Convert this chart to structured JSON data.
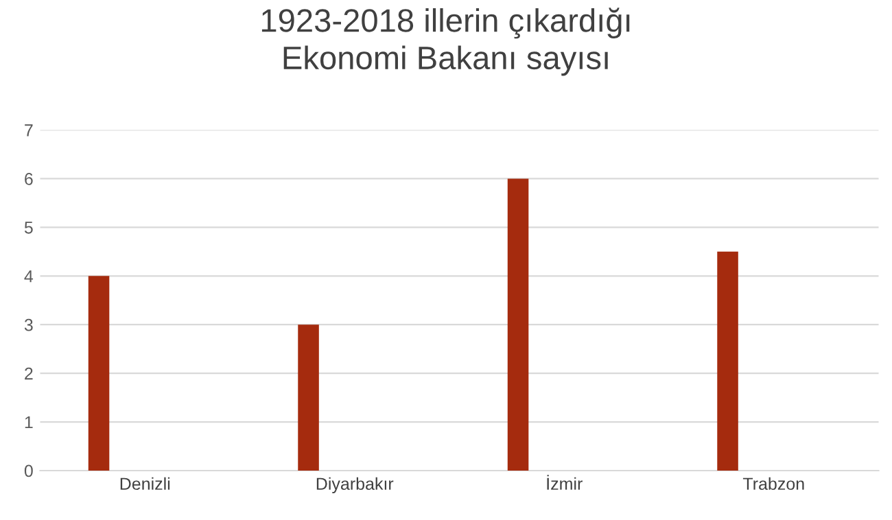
{
  "chart_data": {
    "type": "bar",
    "title": "1923-2018 illerin çıkardığı\nEkonomi Bakanı sayısı",
    "categories": [
      "Denizli",
      "Diyarbakır",
      "İzmir",
      "Trabzon"
    ],
    "values": [
      4,
      3,
      6,
      4.5
    ],
    "color": "#a52b0e",
    "ylim": [
      0,
      7
    ],
    "yticks": [
      0,
      1,
      2,
      3,
      4,
      5,
      6,
      7
    ],
    "grid": "y"
  }
}
